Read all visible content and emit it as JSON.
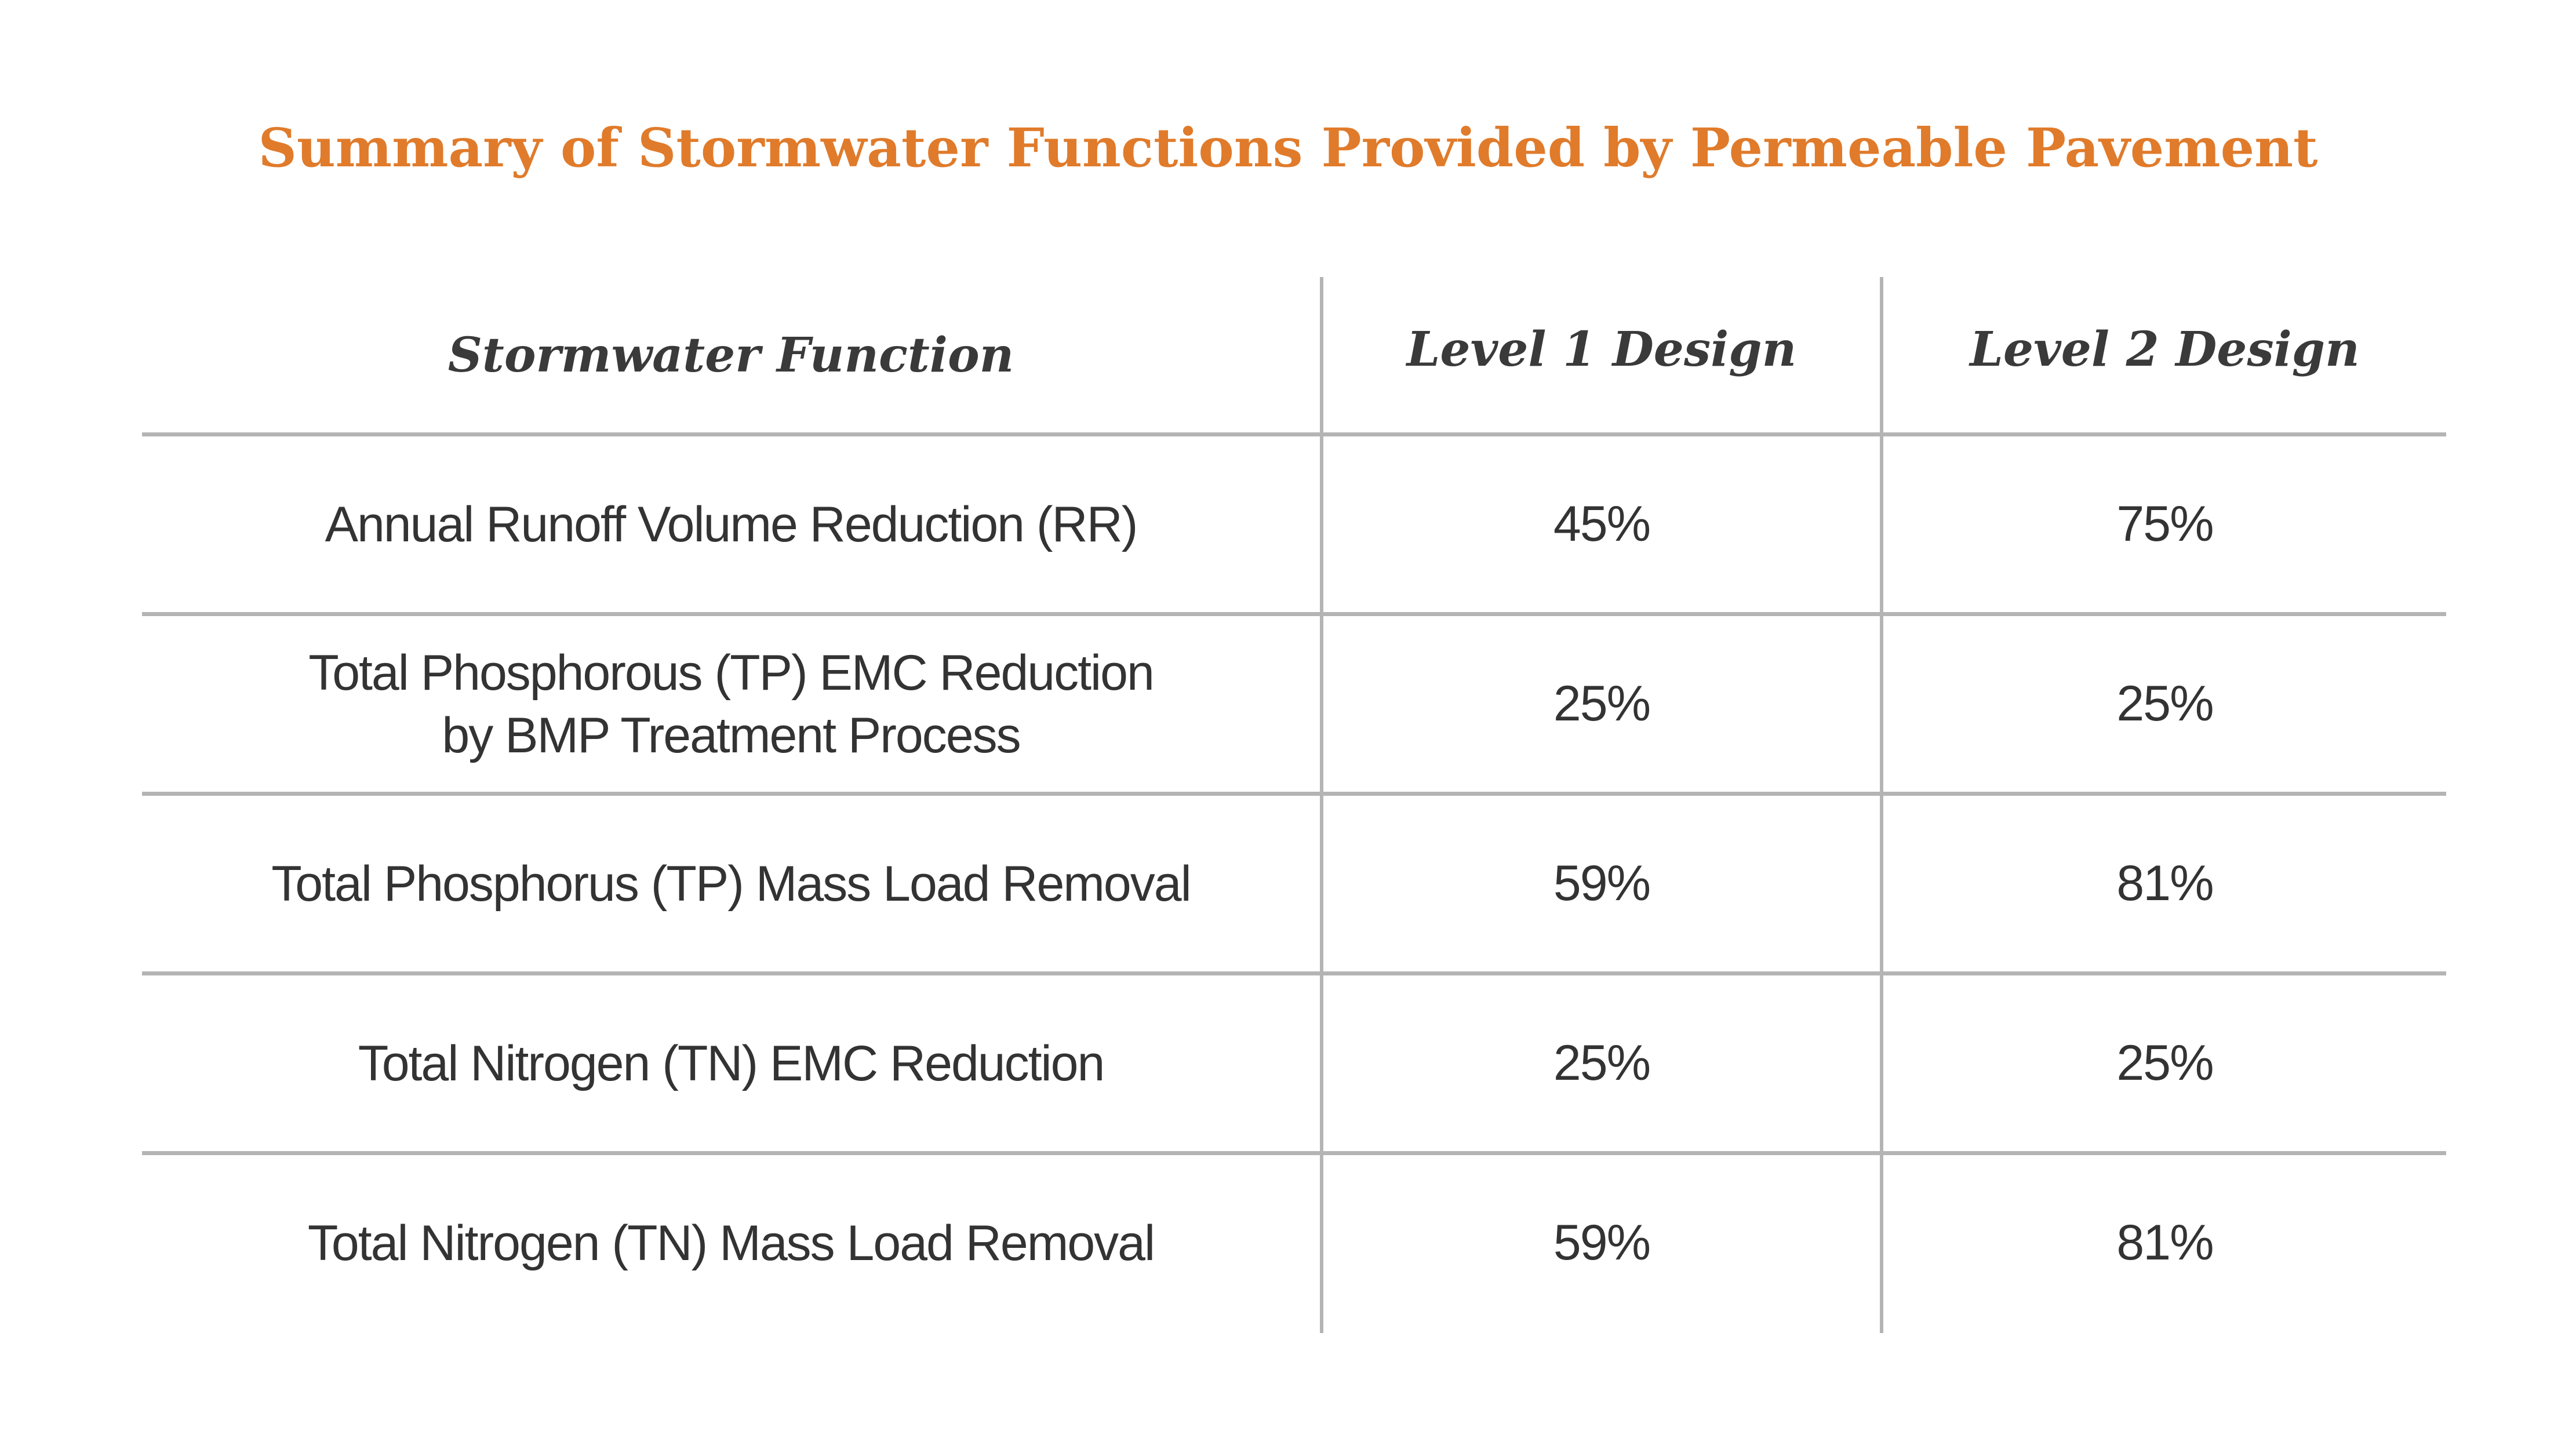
{
  "title": "Summary of Stormwater Functions Provided by Permeable Pavement",
  "headers": {
    "function": "Stormwater Function",
    "level1": "Level 1 Design",
    "level2": "Level 2 Design"
  },
  "rows": [
    {
      "function_lines": [
        "Annual Runoff Volume Reduction (RR)"
      ],
      "level1": "45%",
      "level2": "75%"
    },
    {
      "function_lines": [
        "Total Phosphorous (TP) EMC Reduction",
        "by BMP Treatment Process"
      ],
      "level1": "25%",
      "level2": "25%"
    },
    {
      "function_lines": [
        "Total Phosphorus (TP) Mass Load Removal"
      ],
      "level1": "59%",
      "level2": "81%"
    },
    {
      "function_lines": [
        "Total Nitrogen (TN) EMC Reduction"
      ],
      "level1": "25%",
      "level2": "25%"
    },
    {
      "function_lines": [
        "Total Nitrogen (TN) Mass Load Removal"
      ],
      "level1": "59%",
      "level2": "81%"
    }
  ],
  "colors": {
    "title": "#e07b2b",
    "text": "#333333",
    "rule": "#b4b4b4"
  }
}
